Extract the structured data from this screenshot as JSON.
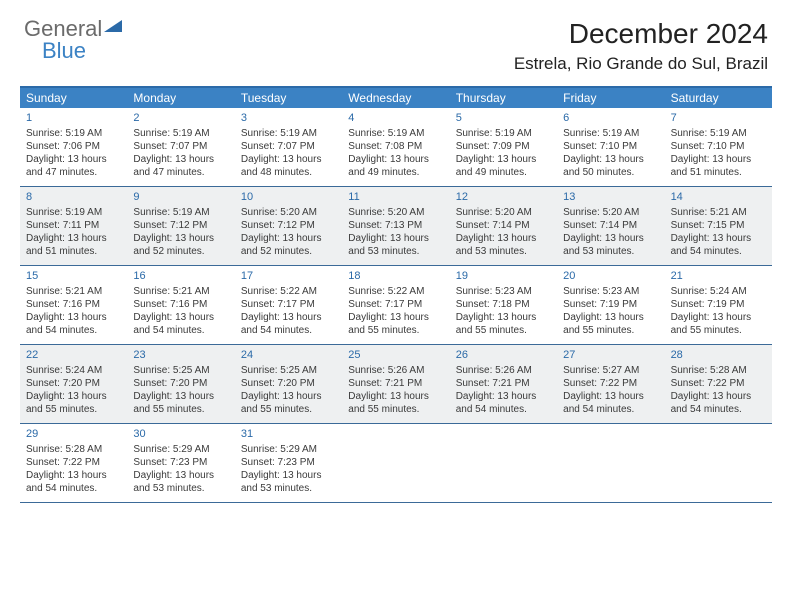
{
  "logo": {
    "line1": "General",
    "line2": "Blue"
  },
  "title": "December 2024",
  "location": "Estrela, Rio Grande do Sul, Brazil",
  "colors": {
    "header_bar": "#3b82c4",
    "rule": "#2b6aa8",
    "alt_row_bg": "#eef0f1",
    "day_num": "#2b6aa8",
    "text": "#3a3a3a",
    "logo_gray": "#6b6b6b",
    "logo_blue": "#3b82c4"
  },
  "typography": {
    "title_fontsize": 28,
    "location_fontsize": 17,
    "dow_fontsize": 12,
    "cell_fontsize": 10,
    "daynum_fontsize": 11
  },
  "days_of_week": [
    "Sunday",
    "Monday",
    "Tuesday",
    "Wednesday",
    "Thursday",
    "Friday",
    "Saturday"
  ],
  "weeks": [
    {
      "alt": false,
      "cells": [
        {
          "n": "1",
          "sr": "Sunrise: 5:19 AM",
          "ss": "Sunset: 7:06 PM",
          "d1": "Daylight: 13 hours",
          "d2": "and 47 minutes."
        },
        {
          "n": "2",
          "sr": "Sunrise: 5:19 AM",
          "ss": "Sunset: 7:07 PM",
          "d1": "Daylight: 13 hours",
          "d2": "and 47 minutes."
        },
        {
          "n": "3",
          "sr": "Sunrise: 5:19 AM",
          "ss": "Sunset: 7:07 PM",
          "d1": "Daylight: 13 hours",
          "d2": "and 48 minutes."
        },
        {
          "n": "4",
          "sr": "Sunrise: 5:19 AM",
          "ss": "Sunset: 7:08 PM",
          "d1": "Daylight: 13 hours",
          "d2": "and 49 minutes."
        },
        {
          "n": "5",
          "sr": "Sunrise: 5:19 AM",
          "ss": "Sunset: 7:09 PM",
          "d1": "Daylight: 13 hours",
          "d2": "and 49 minutes."
        },
        {
          "n": "6",
          "sr": "Sunrise: 5:19 AM",
          "ss": "Sunset: 7:10 PM",
          "d1": "Daylight: 13 hours",
          "d2": "and 50 minutes."
        },
        {
          "n": "7",
          "sr": "Sunrise: 5:19 AM",
          "ss": "Sunset: 7:10 PM",
          "d1": "Daylight: 13 hours",
          "d2": "and 51 minutes."
        }
      ]
    },
    {
      "alt": true,
      "cells": [
        {
          "n": "8",
          "sr": "Sunrise: 5:19 AM",
          "ss": "Sunset: 7:11 PM",
          "d1": "Daylight: 13 hours",
          "d2": "and 51 minutes."
        },
        {
          "n": "9",
          "sr": "Sunrise: 5:19 AM",
          "ss": "Sunset: 7:12 PM",
          "d1": "Daylight: 13 hours",
          "d2": "and 52 minutes."
        },
        {
          "n": "10",
          "sr": "Sunrise: 5:20 AM",
          "ss": "Sunset: 7:12 PM",
          "d1": "Daylight: 13 hours",
          "d2": "and 52 minutes."
        },
        {
          "n": "11",
          "sr": "Sunrise: 5:20 AM",
          "ss": "Sunset: 7:13 PM",
          "d1": "Daylight: 13 hours",
          "d2": "and 53 minutes."
        },
        {
          "n": "12",
          "sr": "Sunrise: 5:20 AM",
          "ss": "Sunset: 7:14 PM",
          "d1": "Daylight: 13 hours",
          "d2": "and 53 minutes."
        },
        {
          "n": "13",
          "sr": "Sunrise: 5:20 AM",
          "ss": "Sunset: 7:14 PM",
          "d1": "Daylight: 13 hours",
          "d2": "and 53 minutes."
        },
        {
          "n": "14",
          "sr": "Sunrise: 5:21 AM",
          "ss": "Sunset: 7:15 PM",
          "d1": "Daylight: 13 hours",
          "d2": "and 54 minutes."
        }
      ]
    },
    {
      "alt": false,
      "cells": [
        {
          "n": "15",
          "sr": "Sunrise: 5:21 AM",
          "ss": "Sunset: 7:16 PM",
          "d1": "Daylight: 13 hours",
          "d2": "and 54 minutes."
        },
        {
          "n": "16",
          "sr": "Sunrise: 5:21 AM",
          "ss": "Sunset: 7:16 PM",
          "d1": "Daylight: 13 hours",
          "d2": "and 54 minutes."
        },
        {
          "n": "17",
          "sr": "Sunrise: 5:22 AM",
          "ss": "Sunset: 7:17 PM",
          "d1": "Daylight: 13 hours",
          "d2": "and 54 minutes."
        },
        {
          "n": "18",
          "sr": "Sunrise: 5:22 AM",
          "ss": "Sunset: 7:17 PM",
          "d1": "Daylight: 13 hours",
          "d2": "and 55 minutes."
        },
        {
          "n": "19",
          "sr": "Sunrise: 5:23 AM",
          "ss": "Sunset: 7:18 PM",
          "d1": "Daylight: 13 hours",
          "d2": "and 55 minutes."
        },
        {
          "n": "20",
          "sr": "Sunrise: 5:23 AM",
          "ss": "Sunset: 7:19 PM",
          "d1": "Daylight: 13 hours",
          "d2": "and 55 minutes."
        },
        {
          "n": "21",
          "sr": "Sunrise: 5:24 AM",
          "ss": "Sunset: 7:19 PM",
          "d1": "Daylight: 13 hours",
          "d2": "and 55 minutes."
        }
      ]
    },
    {
      "alt": true,
      "cells": [
        {
          "n": "22",
          "sr": "Sunrise: 5:24 AM",
          "ss": "Sunset: 7:20 PM",
          "d1": "Daylight: 13 hours",
          "d2": "and 55 minutes."
        },
        {
          "n": "23",
          "sr": "Sunrise: 5:25 AM",
          "ss": "Sunset: 7:20 PM",
          "d1": "Daylight: 13 hours",
          "d2": "and 55 minutes."
        },
        {
          "n": "24",
          "sr": "Sunrise: 5:25 AM",
          "ss": "Sunset: 7:20 PM",
          "d1": "Daylight: 13 hours",
          "d2": "and 55 minutes."
        },
        {
          "n": "25",
          "sr": "Sunrise: 5:26 AM",
          "ss": "Sunset: 7:21 PM",
          "d1": "Daylight: 13 hours",
          "d2": "and 55 minutes."
        },
        {
          "n": "26",
          "sr": "Sunrise: 5:26 AM",
          "ss": "Sunset: 7:21 PM",
          "d1": "Daylight: 13 hours",
          "d2": "and 54 minutes."
        },
        {
          "n": "27",
          "sr": "Sunrise: 5:27 AM",
          "ss": "Sunset: 7:22 PM",
          "d1": "Daylight: 13 hours",
          "d2": "and 54 minutes."
        },
        {
          "n": "28",
          "sr": "Sunrise: 5:28 AM",
          "ss": "Sunset: 7:22 PM",
          "d1": "Daylight: 13 hours",
          "d2": "and 54 minutes."
        }
      ]
    },
    {
      "alt": false,
      "cells": [
        {
          "n": "29",
          "sr": "Sunrise: 5:28 AM",
          "ss": "Sunset: 7:22 PM",
          "d1": "Daylight: 13 hours",
          "d2": "and 54 minutes."
        },
        {
          "n": "30",
          "sr": "Sunrise: 5:29 AM",
          "ss": "Sunset: 7:23 PM",
          "d1": "Daylight: 13 hours",
          "d2": "and 53 minutes."
        },
        {
          "n": "31",
          "sr": "Sunrise: 5:29 AM",
          "ss": "Sunset: 7:23 PM",
          "d1": "Daylight: 13 hours",
          "d2": "and 53 minutes."
        },
        {
          "empty": true
        },
        {
          "empty": true
        },
        {
          "empty": true
        },
        {
          "empty": true
        }
      ]
    }
  ]
}
